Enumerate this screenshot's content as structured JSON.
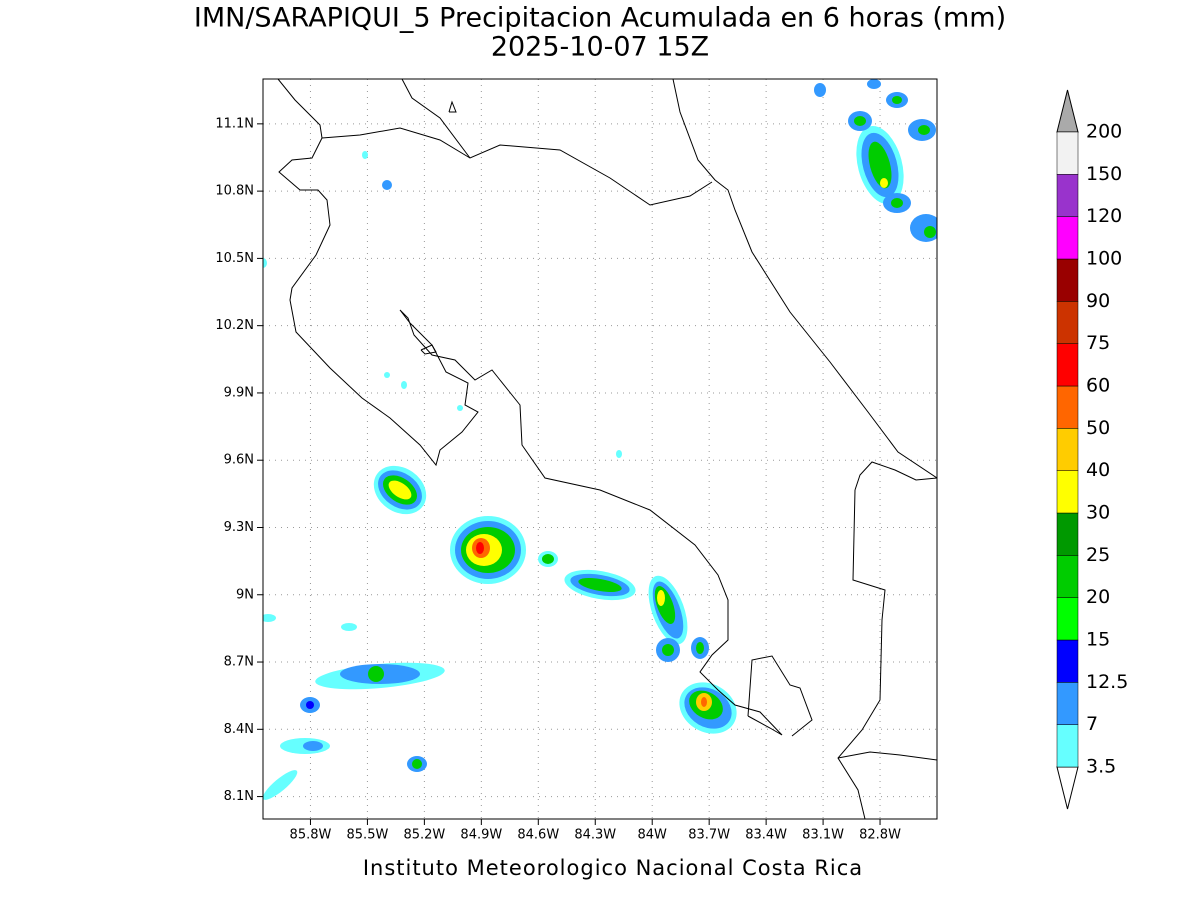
{
  "map": {
    "title": "IMN/SARAPIQUI_5 Precipitacion Acumulada en 6 horas (mm)",
    "subtitle": "2025-10-07 15Z",
    "footer": "Instituto Meteorologico Nacional Costa Rica",
    "lonlim": [
      -86.05,
      -82.5
    ],
    "latlim": [
      8.0,
      11.3
    ],
    "lon_ticks": [
      {
        "value": -85.8,
        "label": "85.8W"
      },
      {
        "value": -85.5,
        "label": "85.5W"
      },
      {
        "value": -85.2,
        "label": "85.2W"
      },
      {
        "value": -84.9,
        "label": "84.9W"
      },
      {
        "value": -84.6,
        "label": "84.6W"
      },
      {
        "value": -84.3,
        "label": "84.3W"
      },
      {
        "value": -84.0,
        "label": "84W"
      },
      {
        "value": -83.7,
        "label": "83.7W"
      },
      {
        "value": -83.4,
        "label": "83.4W"
      },
      {
        "value": -83.1,
        "label": "83.1W"
      },
      {
        "value": -82.8,
        "label": "82.8W"
      }
    ],
    "lat_ticks": [
      {
        "value": 8.1,
        "label": "8.1N"
      },
      {
        "value": 8.4,
        "label": "8.4N"
      },
      {
        "value": 8.7,
        "label": "8.7N"
      },
      {
        "value": 9.0,
        "label": "9N"
      },
      {
        "value": 9.3,
        "label": "9.3N"
      },
      {
        "value": 9.6,
        "label": "9.6N"
      },
      {
        "value": 9.9,
        "label": "9.9N"
      },
      {
        "value": 10.2,
        "label": "10.2N"
      },
      {
        "value": 10.5,
        "label": "10.5N"
      },
      {
        "value": 10.8,
        "label": "10.8N"
      },
      {
        "value": 11.1,
        "label": "11.1N"
      }
    ],
    "grid": true,
    "colorbar": {
      "levels": [
        3.5,
        7,
        12.5,
        15,
        20,
        25,
        30,
        40,
        50,
        60,
        75,
        90,
        100,
        120,
        150,
        200
      ],
      "colors": [
        "#66ffff",
        "#3399ff",
        "#0000ff",
        "#00ff00",
        "#00cc00",
        "#009900",
        "#ffff00",
        "#ffcc00",
        "#ff6600",
        "#ff0000",
        "#cc3300",
        "#990000",
        "#ff00ff",
        "#9933cc",
        "#f2f2f2"
      ],
      "under_color": "#ffffff",
      "over_color": "#aaaaaa"
    }
  }
}
